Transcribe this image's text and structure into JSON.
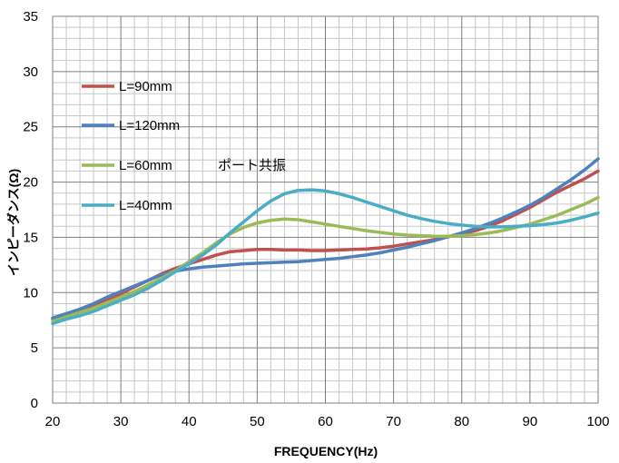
{
  "chart_data": {
    "type": "line",
    "xlabel": "FREQUENCY(Hz)",
    "ylabel": "インピーダンス(Ω)",
    "xlim": [
      20,
      100
    ],
    "ylim": [
      0,
      35
    ],
    "xticks": [
      20,
      30,
      40,
      50,
      60,
      70,
      80,
      90,
      100
    ],
    "yticks": [
      0,
      5,
      10,
      15,
      20,
      25,
      30,
      35
    ],
    "grid": true,
    "minor_grid": true,
    "legend_position": "left",
    "annotation": "ポート共振",
    "series": [
      {
        "name": "L=90mm",
        "color": "#c0504d",
        "points": [
          [
            20,
            7.6
          ],
          [
            22,
            8.0
          ],
          [
            24,
            8.3
          ],
          [
            26,
            8.8
          ],
          [
            28,
            9.3
          ],
          [
            30,
            9.9
          ],
          [
            32,
            10.5
          ],
          [
            34,
            11.1
          ],
          [
            36,
            11.7
          ],
          [
            38,
            12.2
          ],
          [
            40,
            12.6
          ],
          [
            42,
            13.0
          ],
          [
            44,
            13.4
          ],
          [
            46,
            13.7
          ],
          [
            48,
            13.8
          ],
          [
            50,
            13.9
          ],
          [
            52,
            13.9
          ],
          [
            54,
            13.85
          ],
          [
            56,
            13.85
          ],
          [
            58,
            13.8
          ],
          [
            60,
            13.8
          ],
          [
            62,
            13.85
          ],
          [
            64,
            13.9
          ],
          [
            66,
            13.95
          ],
          [
            68,
            14.05
          ],
          [
            70,
            14.2
          ],
          [
            72,
            14.4
          ],
          [
            74,
            14.6
          ],
          [
            76,
            14.8
          ],
          [
            78,
            15.05
          ],
          [
            80,
            15.3
          ],
          [
            82,
            15.6
          ],
          [
            84,
            16.0
          ],
          [
            86,
            16.5
          ],
          [
            88,
            17.1
          ],
          [
            90,
            17.7
          ],
          [
            92,
            18.4
          ],
          [
            94,
            19.1
          ],
          [
            96,
            19.7
          ],
          [
            98,
            20.3
          ],
          [
            100,
            21.0
          ]
        ]
      },
      {
        "name": "L=120mm",
        "color": "#4f81bd",
        "points": [
          [
            20,
            7.7
          ],
          [
            22,
            8.1
          ],
          [
            24,
            8.5
          ],
          [
            26,
            9.0
          ],
          [
            28,
            9.6
          ],
          [
            30,
            10.1
          ],
          [
            32,
            10.6
          ],
          [
            34,
            11.1
          ],
          [
            36,
            11.6
          ],
          [
            38,
            11.95
          ],
          [
            40,
            12.15
          ],
          [
            42,
            12.3
          ],
          [
            44,
            12.4
          ],
          [
            46,
            12.5
          ],
          [
            48,
            12.6
          ],
          [
            50,
            12.65
          ],
          [
            52,
            12.7
          ],
          [
            54,
            12.75
          ],
          [
            56,
            12.8
          ],
          [
            58,
            12.9
          ],
          [
            60,
            13.0
          ],
          [
            62,
            13.1
          ],
          [
            64,
            13.25
          ],
          [
            66,
            13.4
          ],
          [
            68,
            13.6
          ],
          [
            70,
            13.85
          ],
          [
            72,
            14.1
          ],
          [
            74,
            14.4
          ],
          [
            76,
            14.7
          ],
          [
            78,
            15.05
          ],
          [
            80,
            15.4
          ],
          [
            82,
            15.8
          ],
          [
            84,
            16.25
          ],
          [
            86,
            16.75
          ],
          [
            88,
            17.3
          ],
          [
            90,
            17.9
          ],
          [
            92,
            18.6
          ],
          [
            94,
            19.4
          ],
          [
            96,
            20.2
          ],
          [
            98,
            21.1
          ],
          [
            100,
            22.1
          ]
        ]
      },
      {
        "name": "L=60mm",
        "color": "#9bbb59",
        "points": [
          [
            20,
            7.4
          ],
          [
            22,
            7.8
          ],
          [
            24,
            8.2
          ],
          [
            26,
            8.6
          ],
          [
            28,
            9.1
          ],
          [
            30,
            9.6
          ],
          [
            32,
            10.1
          ],
          [
            34,
            10.7
          ],
          [
            36,
            11.3
          ],
          [
            38,
            12.0
          ],
          [
            40,
            12.8
          ],
          [
            42,
            13.6
          ],
          [
            44,
            14.5
          ],
          [
            46,
            15.3
          ],
          [
            48,
            15.9
          ],
          [
            50,
            16.3
          ],
          [
            52,
            16.55
          ],
          [
            54,
            16.65
          ],
          [
            56,
            16.6
          ],
          [
            58,
            16.4
          ],
          [
            60,
            16.2
          ],
          [
            62,
            16.0
          ],
          [
            64,
            15.8
          ],
          [
            66,
            15.6
          ],
          [
            68,
            15.45
          ],
          [
            70,
            15.3
          ],
          [
            72,
            15.2
          ],
          [
            74,
            15.15
          ],
          [
            76,
            15.1
          ],
          [
            78,
            15.1
          ],
          [
            80,
            15.15
          ],
          [
            82,
            15.25
          ],
          [
            84,
            15.4
          ],
          [
            86,
            15.6
          ],
          [
            88,
            15.9
          ],
          [
            90,
            16.2
          ],
          [
            92,
            16.6
          ],
          [
            94,
            17.0
          ],
          [
            96,
            17.5
          ],
          [
            98,
            18.0
          ],
          [
            100,
            18.6
          ]
        ]
      },
      {
        "name": "L=40mm",
        "color": "#4bacc6",
        "points": [
          [
            20,
            7.2
          ],
          [
            22,
            7.6
          ],
          [
            24,
            7.9
          ],
          [
            26,
            8.3
          ],
          [
            28,
            8.8
          ],
          [
            30,
            9.3
          ],
          [
            32,
            9.8
          ],
          [
            34,
            10.4
          ],
          [
            36,
            11.1
          ],
          [
            38,
            11.9
          ],
          [
            40,
            12.6
          ],
          [
            42,
            13.4
          ],
          [
            44,
            14.3
          ],
          [
            46,
            15.4
          ],
          [
            48,
            16.4
          ],
          [
            50,
            17.4
          ],
          [
            52,
            18.3
          ],
          [
            54,
            18.95
          ],
          [
            56,
            19.25
          ],
          [
            58,
            19.3
          ],
          [
            60,
            19.2
          ],
          [
            62,
            18.95
          ],
          [
            64,
            18.6
          ],
          [
            66,
            18.2
          ],
          [
            68,
            17.8
          ],
          [
            70,
            17.4
          ],
          [
            72,
            17.0
          ],
          [
            74,
            16.7
          ],
          [
            76,
            16.45
          ],
          [
            78,
            16.25
          ],
          [
            80,
            16.1
          ],
          [
            82,
            16.0
          ],
          [
            84,
            15.95
          ],
          [
            86,
            15.95
          ],
          [
            88,
            16.0
          ],
          [
            90,
            16.05
          ],
          [
            92,
            16.15
          ],
          [
            94,
            16.3
          ],
          [
            96,
            16.55
          ],
          [
            98,
            16.85
          ],
          [
            100,
            17.2
          ]
        ]
      }
    ]
  }
}
